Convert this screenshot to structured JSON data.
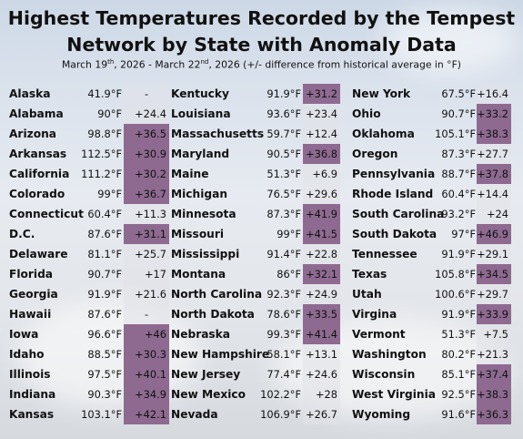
{
  "title_line1": "Highest Temperatures Recorded by the Tempest",
  "title_line2": "Network by State with Anomaly Data",
  "subtitle": {
    "start_day": "March 19",
    "start_suffix": "th",
    "mid": ", 2026 - March 22",
    "end_suffix": "nd",
    "end": ", 2026 (+/- difference from historical average in °F)"
  },
  "columns": [
    [
      {
        "state": "Alaska",
        "temp": "41.9°F",
        "anomaly": "-"
      },
      {
        "state": "Alabama",
        "temp": "90°F",
        "anomaly": "+24.4"
      },
      {
        "state": "Arizona",
        "temp": "98.8°F",
        "anomaly": "+36.5"
      },
      {
        "state": "Arkansas",
        "temp": "112.5°F",
        "anomaly": "+30.9"
      },
      {
        "state": "California",
        "temp": "111.2°F",
        "anomaly": "+30.2"
      },
      {
        "state": "Colorado",
        "temp": "99°F",
        "anomaly": "+36.7"
      },
      {
        "state": "Connecticut",
        "temp": "60.4°F",
        "anomaly": "+11.3"
      },
      {
        "state": "D.C.",
        "temp": "87.6°F",
        "anomaly": "+31.1"
      },
      {
        "state": "Delaware",
        "temp": "81.1°F",
        "anomaly": "+25.7"
      },
      {
        "state": "Florida",
        "temp": "90.7°F",
        "anomaly": "+17"
      },
      {
        "state": "Georgia",
        "temp": "91.9°F",
        "anomaly": "+21.6"
      },
      {
        "state": "Hawaii",
        "temp": "87.6°F",
        "anomaly": "-"
      },
      {
        "state": "Iowa",
        "temp": "96.6°F",
        "anomaly": "+46"
      },
      {
        "state": "Idaho",
        "temp": "88.5°F",
        "anomaly": "+30.3"
      },
      {
        "state": "Illinois",
        "temp": "97.5°F",
        "anomaly": "+40.1"
      },
      {
        "state": "Indiana",
        "temp": "90.3°F",
        "anomaly": "+34.9"
      },
      {
        "state": "Kansas",
        "temp": "103.1°F",
        "anomaly": "+42.1"
      }
    ],
    [
      {
        "state": "Kentucky",
        "temp": "91.9°F",
        "anomaly": "+31.2"
      },
      {
        "state": "Louisiana",
        "temp": "93.6°F",
        "anomaly": "+23.4"
      },
      {
        "state": "Massachusetts",
        "temp": "59.7°F",
        "anomaly": "+12.4"
      },
      {
        "state": "Maryland",
        "temp": "90.5°F",
        "anomaly": "+36.8"
      },
      {
        "state": "Maine",
        "temp": "51.3°F",
        "anomaly": "+6.9"
      },
      {
        "state": "Michigan",
        "temp": "76.5°F",
        "anomaly": "+29.6"
      },
      {
        "state": "Minnesota",
        "temp": "87.3°F",
        "anomaly": "+41.9"
      },
      {
        "state": "Missouri",
        "temp": "99°F",
        "anomaly": "+41.5"
      },
      {
        "state": "Mississippi",
        "temp": "91.4°F",
        "anomaly": "+22.8"
      },
      {
        "state": "Montana",
        "temp": "86°F",
        "anomaly": "+32.1"
      },
      {
        "state": "North Carolina",
        "temp": "92.3°F",
        "anomaly": "+24.9"
      },
      {
        "state": "North Dakota",
        "temp": "78.6°F",
        "anomaly": "+33.5"
      },
      {
        "state": "Nebraska",
        "temp": "99.3°F",
        "anomaly": "+41.4"
      },
      {
        "state": "New Hampshire",
        "temp": "58.1°F",
        "anomaly": "+13.1"
      },
      {
        "state": "New Jersey",
        "temp": "77.4°F",
        "anomaly": "+24.6"
      },
      {
        "state": "New Mexico",
        "temp": "102.2°F",
        "anomaly": "+28"
      },
      {
        "state": "Nevada",
        "temp": "106.9°F",
        "anomaly": "+26.7"
      }
    ],
    [
      {
        "state": "New York",
        "temp": "67.5°F",
        "anomaly": "+16.4"
      },
      {
        "state": "Ohio",
        "temp": "90.7°F",
        "anomaly": "+33.2"
      },
      {
        "state": "Oklahoma",
        "temp": "105.1°F",
        "anomaly": "+38.3"
      },
      {
        "state": "Oregon",
        "temp": "87.3°F",
        "anomaly": "+27.7"
      },
      {
        "state": "Pennsylvania",
        "temp": "88.7°F",
        "anomaly": "+37.8"
      },
      {
        "state": "Rhode Island",
        "temp": "60.4°F",
        "anomaly": "+14.4"
      },
      {
        "state": "South Carolina",
        "temp": "93.2°F",
        "anomaly": "+24"
      },
      {
        "state": "South Dakota",
        "temp": "97°F",
        "anomaly": "+46.9"
      },
      {
        "state": "Tennessee",
        "temp": "91.9°F",
        "anomaly": "+29.1"
      },
      {
        "state": "Texas",
        "temp": "105.8°F",
        "anomaly": "+34.5"
      },
      {
        "state": "Utah",
        "temp": "100.6°F",
        "anomaly": "+29.7"
      },
      {
        "state": "Virgina",
        "temp": "91.9°F",
        "anomaly": "+33.9"
      },
      {
        "state": "Vermont",
        "temp": "51.3°F",
        "anomaly": "+7.5"
      },
      {
        "state": "Washington",
        "temp": "80.2°F",
        "anomaly": "+21.3"
      },
      {
        "state": "Wisconsin",
        "temp": "85.1°F",
        "anomaly": "+37.4"
      },
      {
        "state": "West Virginia",
        "temp": "92.5°F",
        "anomaly": "+38.3"
      },
      {
        "state": "Wyoming",
        "temp": "91.6°F",
        "anomaly": "+36.3"
      }
    ]
  ],
  "colors": {
    "anomaly_high": "#8e6a91",
    "anomaly_mid": "#cbbccd",
    "anomaly_low": "#e1e1e8"
  }
}
